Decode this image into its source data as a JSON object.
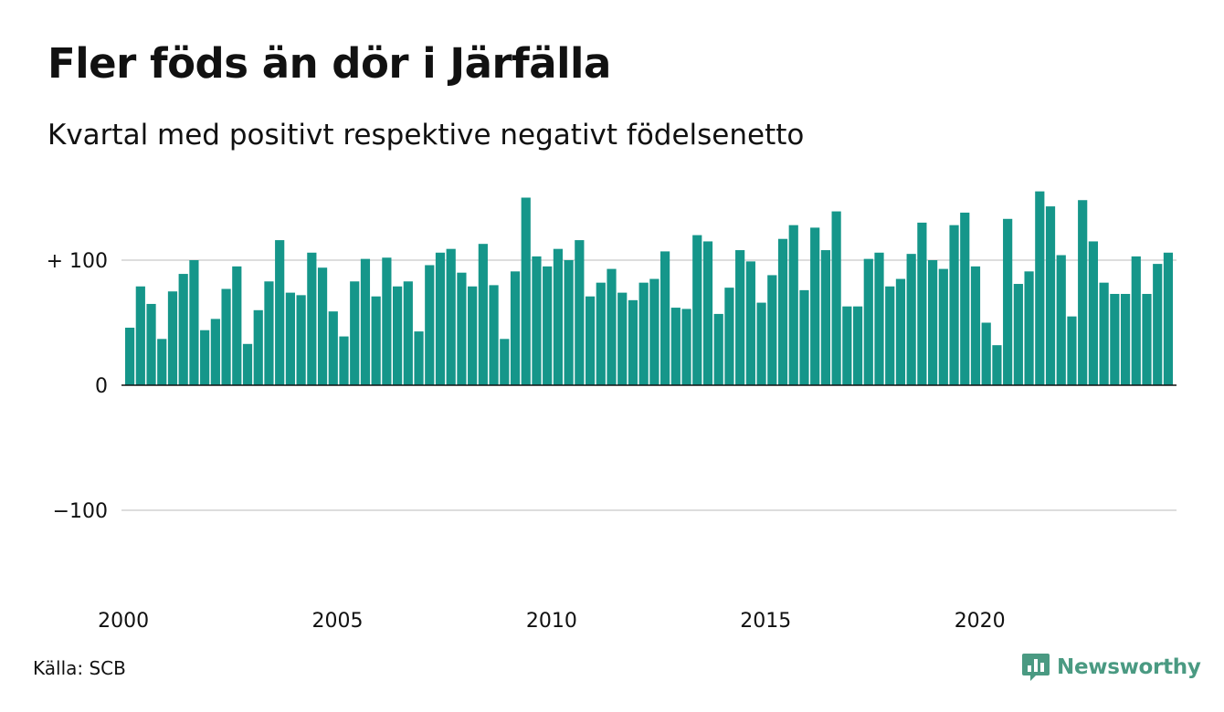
{
  "title": "Fler föds än dör i Järfälla",
  "subtitle": "Kvartal med positivt respektive negativt födelsenetto",
  "source": "Källa: SCB",
  "brand": {
    "name": "Newsworthy",
    "icon": "newsworthy-logo-icon",
    "color": "#4a9a82"
  },
  "colors": {
    "bar": "#15968a",
    "grid": "#dddddd",
    "zero_line": "#111111"
  },
  "chart_data": {
    "type": "bar",
    "title": "Fler föds än dör i Järfälla",
    "subtitle": "Kvartal med positivt respektive negativt födelsenetto",
    "xlabel": "",
    "ylabel": "",
    "ylim": [
      -170,
      160
    ],
    "y_ticks": [
      {
        "value": 100,
        "label": "+ 100"
      },
      {
        "value": 0,
        "label": "0"
      },
      {
        "value": -100,
        "label": "−100"
      }
    ],
    "x_ticks": [
      "2000",
      "2005",
      "2010",
      "2015",
      "2020"
    ],
    "grid": true,
    "series": [
      {
        "values": [
          46,
          79,
          65,
          37,
          75,
          89,
          100,
          44,
          53,
          77,
          95,
          33,
          60,
          83,
          116,
          74,
          72,
          106,
          94,
          59,
          39,
          83,
          101,
          71,
          102,
          79,
          83,
          43,
          96,
          106,
          109,
          90,
          79,
          113,
          80,
          37,
          91,
          150,
          103,
          95,
          109,
          100,
          116,
          71,
          82,
          93,
          74,
          68,
          82,
          85,
          107,
          62,
          61,
          120,
          115,
          57,
          78,
          108,
          99,
          66,
          88,
          117,
          128,
          76,
          126,
          108,
          139,
          63,
          63,
          101,
          106,
          79,
          85,
          105,
          130,
          100,
          93,
          128,
          138,
          95,
          50,
          32,
          133,
          81,
          91,
          155,
          143,
          104,
          55,
          148,
          115,
          82,
          73,
          73,
          103,
          73,
          97,
          106
        ]
      }
    ]
  }
}
